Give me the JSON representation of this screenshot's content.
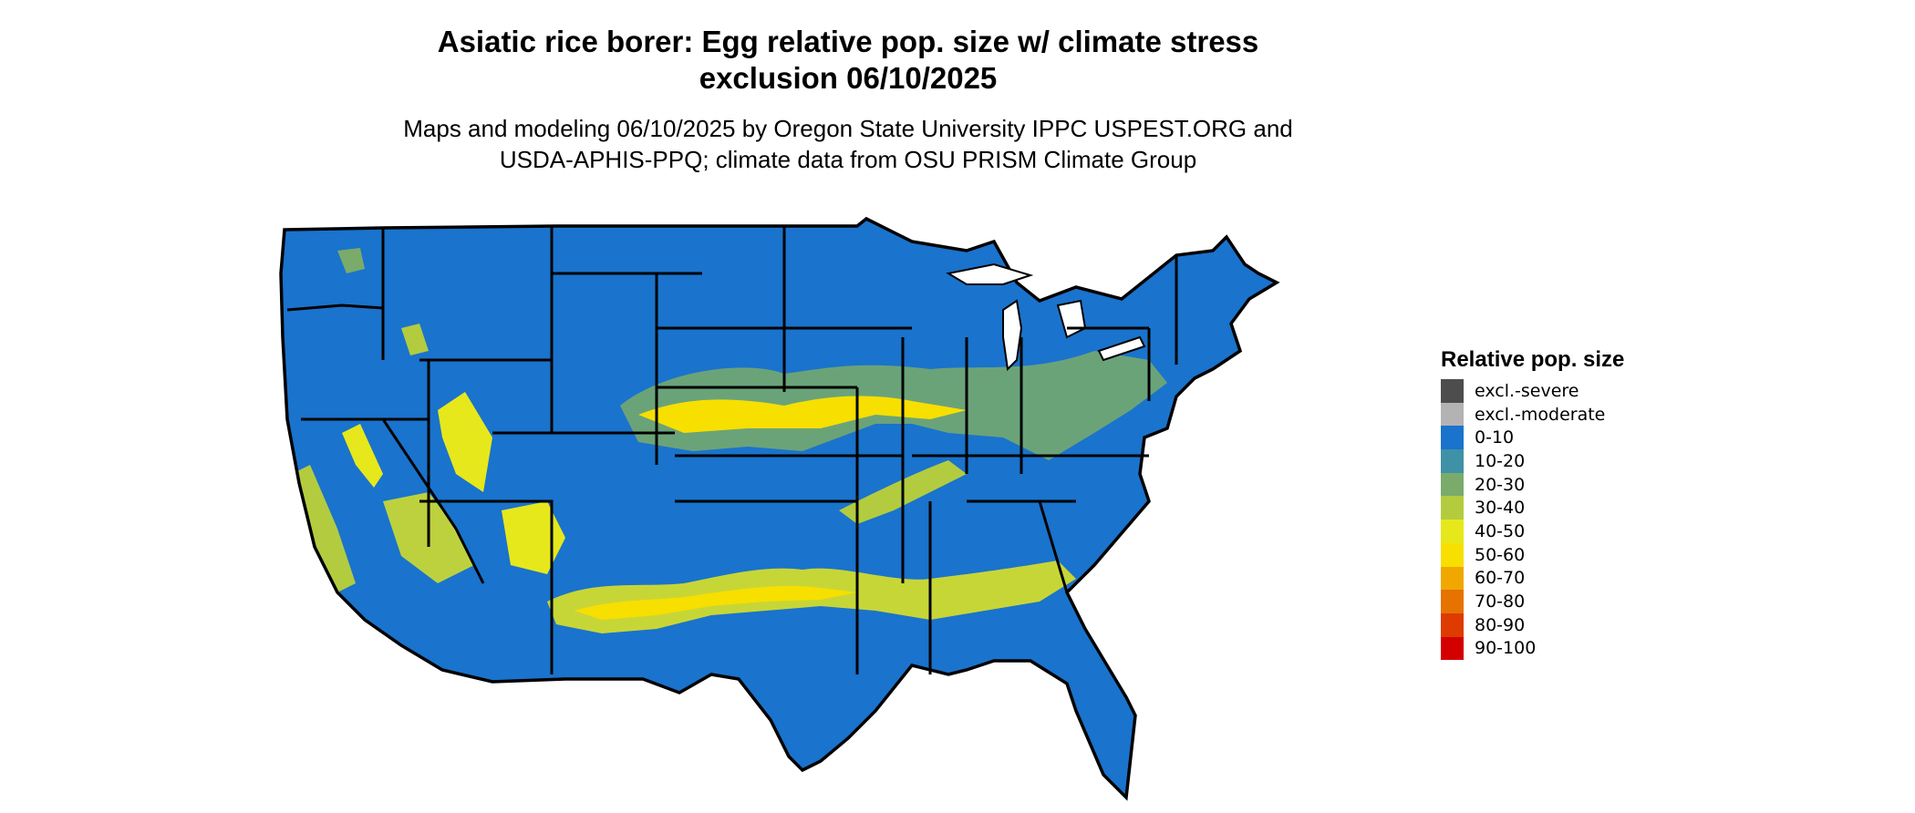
{
  "title": {
    "line1": "Asiatic rice borer: Egg relative pop. size w/ climate stress",
    "line2": "exclusion 06/10/2025"
  },
  "subtitle": {
    "line1": "Maps and modeling 06/10/2025 by Oregon State University IPPC USPEST.ORG and",
    "line2": "USDA-APHIS-PPQ; climate data from OSU PRISM Climate Group"
  },
  "legend": {
    "title": "Relative pop. size",
    "items": [
      {
        "label": "excl.-severe",
        "color": "#4d4d4d"
      },
      {
        "label": "excl.-moderate",
        "color": "#b3b3b3"
      },
      {
        "label": "0-10",
        "color": "#1a73cc"
      },
      {
        "label": "10-20",
        "color": "#3f91a7"
      },
      {
        "label": "20-30",
        "color": "#7aab6a"
      },
      {
        "label": "30-40",
        "color": "#b3cc3f"
      },
      {
        "label": "40-50",
        "color": "#e6e81c"
      },
      {
        "label": "50-60",
        "color": "#f7df00"
      },
      {
        "label": "60-70",
        "color": "#f0a800"
      },
      {
        "label": "70-80",
        "color": "#e67200"
      },
      {
        "label": "80-90",
        "color": "#dd3b00"
      },
      {
        "label": "90-100",
        "color": "#d40000"
      }
    ]
  },
  "map": {
    "base_color": "#1a73cc",
    "border_color": "#000000",
    "water_color": "#ffffff"
  }
}
